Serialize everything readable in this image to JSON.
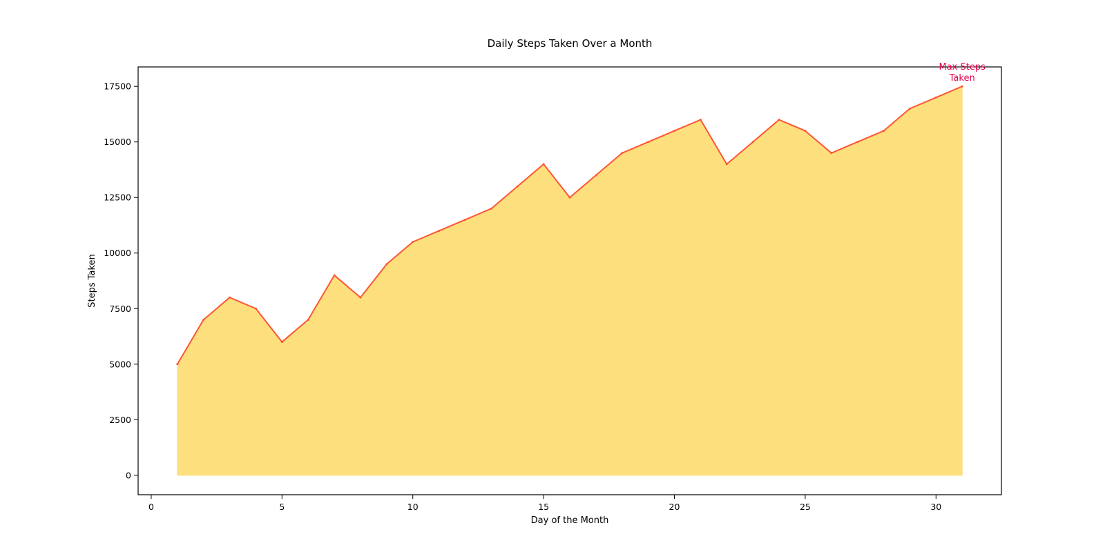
{
  "chart_data": {
    "type": "area",
    "title": "Daily Steps Taken Over a Month",
    "xlabel": "Day of the Month",
    "ylabel": "Steps Taken",
    "xlim": [
      -0.5,
      32.5
    ],
    "ylim": [
      -875,
      18375
    ],
    "x_ticks": [
      0,
      5,
      10,
      15,
      20,
      25,
      30
    ],
    "y_ticks": [
      0,
      2500,
      5000,
      7500,
      10000,
      12500,
      15000,
      17500
    ],
    "grid": false,
    "legend": "none",
    "series": [
      {
        "x": [
          1,
          2,
          3,
          4,
          5,
          6,
          7,
          8,
          9,
          10,
          11,
          12,
          13,
          14,
          15,
          16,
          17,
          18,
          19,
          20,
          21,
          22,
          23,
          24,
          25,
          26,
          27,
          28,
          29,
          30,
          31
        ],
        "values": [
          5000,
          7000,
          8000,
          7500,
          6000,
          7000,
          9000,
          8000,
          9500,
          10500,
          11000,
          11500,
          12000,
          13000,
          14000,
          12500,
          13500,
          14500,
          15000,
          15500,
          16000,
          14000,
          15000,
          16000,
          15500,
          14500,
          15000,
          15500,
          16500,
          17000,
          17500
        ],
        "line_color": "#ff5533",
        "fill_color": "#fddf7e"
      }
    ],
    "annotations": [
      {
        "lines": [
          "Max Steps",
          "Taken"
        ],
        "x": 31,
        "y": 17500,
        "color": "#e0004a"
      }
    ]
  }
}
